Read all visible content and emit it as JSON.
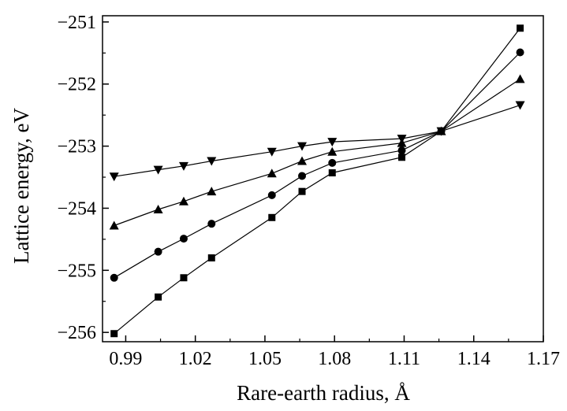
{
  "chart_data": {
    "type": "line",
    "xlabel": "Rare-earth radius, Å",
    "ylabel": "Lattice energy, eV",
    "xlim": [
      0.98,
      1.17
    ],
    "ylim": [
      -256.15,
      -250.9
    ],
    "x_ticks": [
      0.99,
      1.02,
      1.05,
      1.08,
      1.11,
      1.14,
      1.17
    ],
    "x_tick_labels": [
      "0.99",
      "1.02",
      "1.05",
      "1.08",
      "1.11",
      "1.14",
      "1.17"
    ],
    "y_ticks": [
      -256,
      -255,
      -254,
      -253,
      -252,
      -251
    ],
    "y_tick_labels": [
      "−256",
      "−255",
      "−254",
      "−253",
      "−252",
      "−251"
    ],
    "grid": false,
    "x": [
      0.985,
      1.004,
      1.015,
      1.027,
      1.053,
      1.066,
      1.079,
      1.109,
      1.126,
      1.16
    ],
    "series": [
      {
        "marker": "square",
        "values": [
          -256.02,
          -255.43,
          -255.12,
          -254.8,
          -254.15,
          -253.73,
          -253.43,
          -253.18,
          -252.76,
          -251.1
        ]
      },
      {
        "marker": "circle",
        "values": [
          -255.12,
          -254.7,
          -254.49,
          -254.25,
          -253.79,
          -253.48,
          -253.27,
          -253.07,
          -252.76,
          -251.49
        ]
      },
      {
        "marker": "triangle-up",
        "values": [
          -254.28,
          -254.02,
          -253.89,
          -253.73,
          -253.44,
          -253.24,
          -253.09,
          -252.95,
          -252.76,
          -251.92
        ]
      },
      {
        "marker": "triangle-down",
        "values": [
          -253.49,
          -253.38,
          -253.32,
          -253.24,
          -253.09,
          -253.0,
          -252.93,
          -252.88,
          -252.76,
          -252.34
        ]
      }
    ]
  }
}
